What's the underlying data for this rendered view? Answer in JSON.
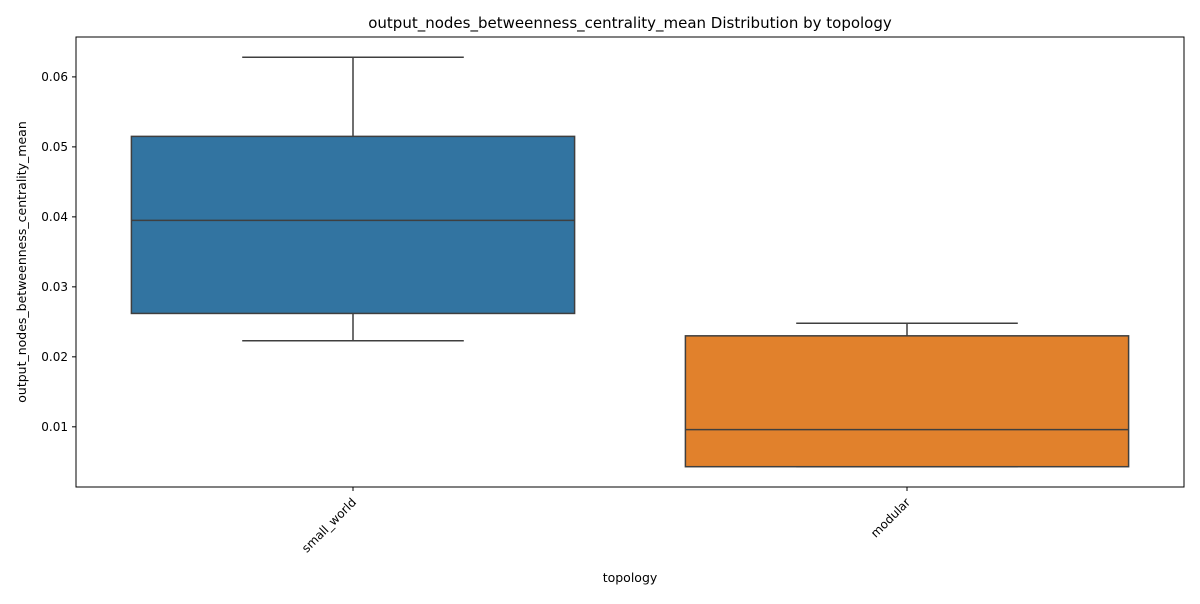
{
  "chart_data": {
    "type": "box",
    "title": "output_nodes_betweenness_centrality_mean Distribution by topology",
    "xlabel": "topology",
    "ylabel": "output_nodes_betweenness_centrality_mean",
    "categories": [
      "small_world",
      "modular"
    ],
    "boxes": [
      {
        "category": "small_world",
        "whisker_low": 0.0223,
        "q1": 0.0262,
        "median": 0.0395,
        "q3": 0.0515,
        "whisker_high": 0.0628,
        "color": "#3274a1"
      },
      {
        "category": "modular",
        "whisker_low": 0.0043,
        "q1": 0.0043,
        "median": 0.0096,
        "q3": 0.023,
        "whisker_high": 0.0248,
        "color": "#e1812c"
      }
    ],
    "ylim": [
      0.0014,
      0.0657
    ],
    "yticks": [
      0.01,
      0.02,
      0.03,
      0.04,
      0.05,
      0.06
    ],
    "ytick_labels": [
      "0.01",
      "0.02",
      "0.03",
      "0.04",
      "0.05",
      "0.06"
    ],
    "xtick_rotation": 45,
    "grid": false,
    "line_color": "#3f3f3f"
  }
}
